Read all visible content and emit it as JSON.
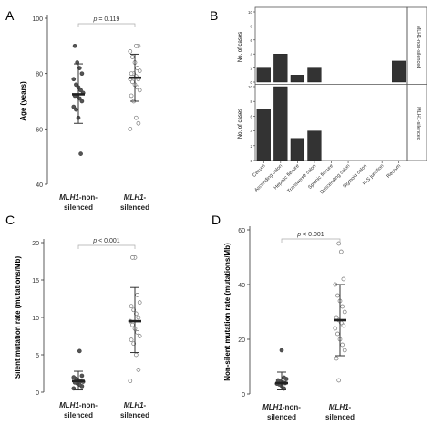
{
  "panels": [
    {
      "id": "A",
      "label": "A"
    },
    {
      "id": "B",
      "label": "B"
    },
    {
      "id": "C",
      "label": "C"
    },
    {
      "id": "D",
      "label": "D"
    }
  ],
  "chart_data": [
    {
      "panel": "A",
      "type": "scatter",
      "ylabel": "Age (years)",
      "ylim": [
        40,
        100
      ],
      "yticks": [
        40,
        60,
        80,
        100
      ],
      "categories": [
        {
          "italic": "MLH1",
          "rest": "-non-",
          "line2": "silenced"
        },
        {
          "italic": "MLH1",
          "rest": "-",
          "line2": "silenced"
        }
      ],
      "annotation": {
        "italic": "p",
        "text": " = 0.119"
      },
      "groups": [
        {
          "mean": 72.5,
          "sd_low": 62,
          "sd_high": 83.5,
          "points": [
            51,
            64,
            67,
            68,
            70,
            71,
            72,
            72,
            73,
            74,
            75,
            76,
            78,
            80,
            82,
            84,
            90
          ]
        },
        {
          "mean": 78.5,
          "sd_low": 70,
          "sd_high": 87,
          "points": [
            60,
            62,
            64,
            70,
            72,
            74,
            75,
            76,
            77,
            78,
            78,
            79,
            80,
            80,
            81,
            82,
            84,
            86,
            88,
            90,
            90
          ]
        }
      ]
    },
    {
      "panel": "B",
      "type": "bar",
      "categories": [
        "Cecum",
        "Ascending colon",
        "Hepatic flexure",
        "Transverse colon",
        "Splenic flexure",
        "Descending colon",
        "Sigmoid colon",
        "R-S junction",
        "Rectum"
      ],
      "ylim": [
        0,
        10
      ],
      "yticks": [
        0,
        2,
        4,
        6,
        8,
        10
      ],
      "series": [
        {
          "name": "MLH1-non-silenced",
          "ylabel": "No. of cases",
          "values": [
            2,
            4,
            1,
            2,
            0,
            0,
            0,
            0,
            3
          ]
        },
        {
          "name": "MLH1-silenced",
          "ylabel": "No. of cases",
          "values": [
            7,
            10,
            3,
            4,
            0,
            0,
            0,
            0,
            0
          ]
        }
      ]
    },
    {
      "panel": "C",
      "type": "scatter",
      "ylabel": "Silent mutation rate (mutations/Mb)",
      "ylim": [
        0,
        20
      ],
      "yticks": [
        0,
        5,
        10,
        15,
        20
      ],
      "categories": [
        {
          "italic": "MLH1",
          "rest": "-non-",
          "line2": "silenced"
        },
        {
          "italic": "MLH1",
          "rest": "-",
          "line2": "silenced"
        }
      ],
      "annotation": {
        "italic": "p",
        "text": " < 0.001"
      },
      "groups": [
        {
          "mean": 1.5,
          "sd_low": 0.3,
          "sd_high": 2.8,
          "points": [
            0.5,
            0.8,
            1.0,
            1.2,
            1.3,
            1.4,
            1.5,
            1.6,
            1.8,
            2.0,
            2.2,
            5.5
          ]
        },
        {
          "mean": 9.5,
          "sd_low": 5.3,
          "sd_high": 14,
          "points": [
            1.5,
            3.0,
            5.0,
            6.5,
            7.0,
            7.5,
            8.0,
            8.5,
            9.0,
            9.5,
            10.0,
            10.5,
            11.0,
            11.5,
            12.0,
            13.0,
            18.0,
            18.0
          ]
        }
      ]
    },
    {
      "panel": "D",
      "type": "scatter",
      "ylabel": "Non-silent mutation rate (mutations/Mb)",
      "ylim": [
        0,
        60
      ],
      "yticks": [
        0,
        20,
        40,
        60
      ],
      "categories": [
        {
          "italic": "MLH1",
          "rest": "-non-",
          "line2": "silenced"
        },
        {
          "italic": "MLH1",
          "rest": "-",
          "line2": "silenced"
        }
      ],
      "annotation": {
        "italic": "p",
        "text": " < 0.001"
      },
      "groups": [
        {
          "mean": 4,
          "sd_low": 1.5,
          "sd_high": 8,
          "points": [
            2,
            3,
            3.5,
            3.8,
            4,
            4.2,
            4.5,
            5,
            5.5,
            6,
            16
          ]
        },
        {
          "mean": 27,
          "sd_low": 14,
          "sd_high": 40,
          "points": [
            5,
            13,
            16,
            18,
            20,
            22,
            24,
            25,
            26,
            27,
            28,
            30,
            32,
            34,
            36,
            40,
            42,
            52,
            55
          ]
        }
      ]
    }
  ]
}
